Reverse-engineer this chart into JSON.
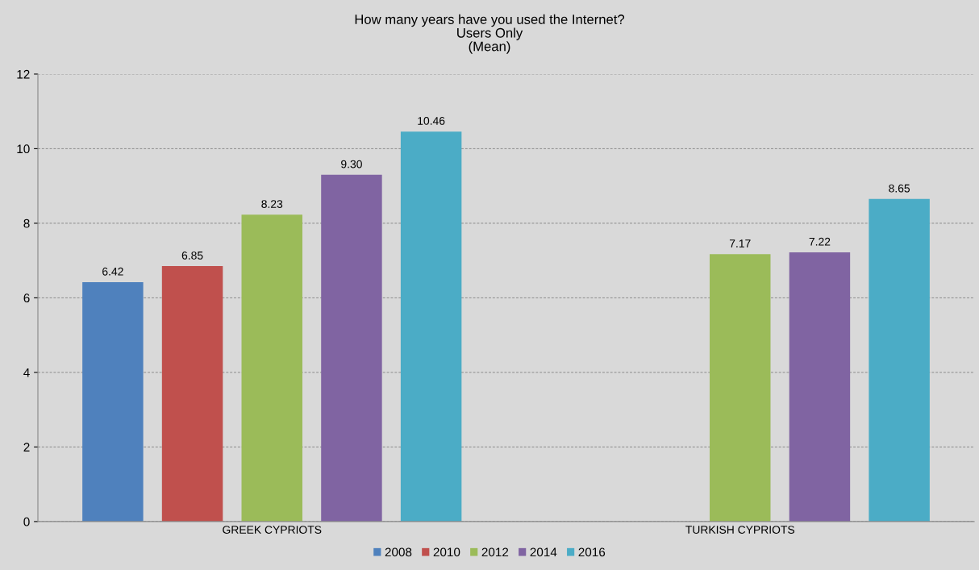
{
  "chart_data": {
    "type": "bar",
    "title": "How many years have you used the Internet?\nUsers Only\n(Mean)",
    "categories": [
      "GREEK CYPRIOTS",
      "TURKISH CYPRIOTS"
    ],
    "series": [
      {
        "name": "2008",
        "color": "#4f81bd",
        "values": [
          6.42,
          null
        ],
        "value_labels": [
          "6.42",
          null
        ]
      },
      {
        "name": "2010",
        "color": "#c0504d",
        "values": [
          6.85,
          null
        ],
        "value_labels": [
          "6.85",
          null
        ]
      },
      {
        "name": "2012",
        "color": "#9bbb59",
        "values": [
          8.23,
          7.17
        ],
        "value_labels": [
          "8.23",
          "7.17"
        ]
      },
      {
        "name": "2014",
        "color": "#8064a2",
        "values": [
          9.3,
          7.22
        ],
        "value_labels": [
          "9.30",
          "7.22"
        ]
      },
      {
        "name": "2016",
        "color": "#4bacc6",
        "values": [
          10.46,
          8.65
        ],
        "value_labels": [
          "10.46",
          "8.65"
        ]
      }
    ],
    "ylim": [
      0,
      12
    ],
    "yticks": [
      0,
      2,
      4,
      6,
      8,
      10,
      12
    ],
    "grid": "y",
    "legend": "bottom"
  }
}
